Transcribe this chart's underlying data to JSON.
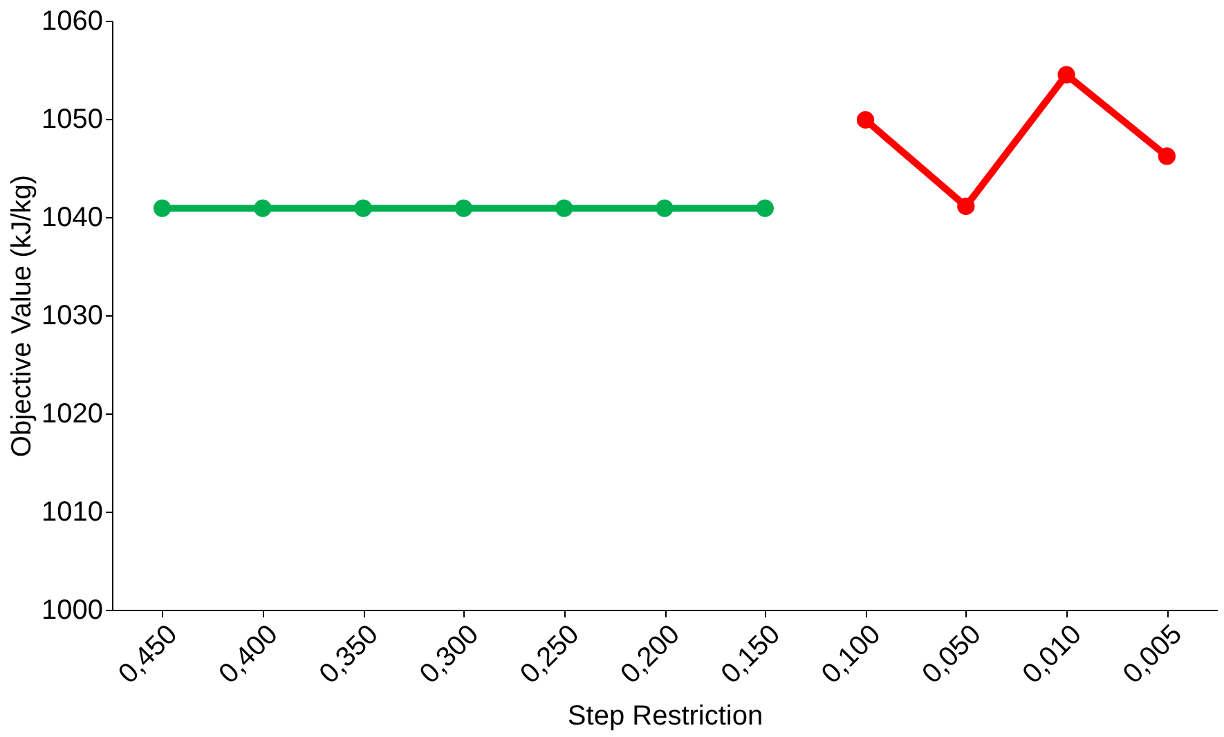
{
  "chart_data": {
    "type": "line",
    "xlabel": "Step Restriction",
    "ylabel": "Objective Value (kJ/kg)",
    "categories": [
      "0,450",
      "0,400",
      "0,350",
      "0,300",
      "0,250",
      "0,200",
      "0,150",
      "0,100",
      "0,050",
      "0,010",
      "0,005"
    ],
    "series": [
      {
        "color": "#00b050",
        "values": [
          1040.9,
          1040.9,
          1040.9,
          1040.9,
          1040.9,
          1040.9,
          1040.9,
          null,
          null,
          null,
          null
        ]
      },
      {
        "color": "#ff0000",
        "values": [
          null,
          null,
          null,
          null,
          null,
          null,
          null,
          1049.9,
          1041.1,
          1054.5,
          1046.2
        ]
      }
    ],
    "ylim": [
      1000,
      1060
    ],
    "yticks": [
      1000,
      1010,
      1020,
      1030,
      1040,
      1050,
      1060
    ],
    "grid": false,
    "marker": "circle",
    "line_style": "solid"
  }
}
